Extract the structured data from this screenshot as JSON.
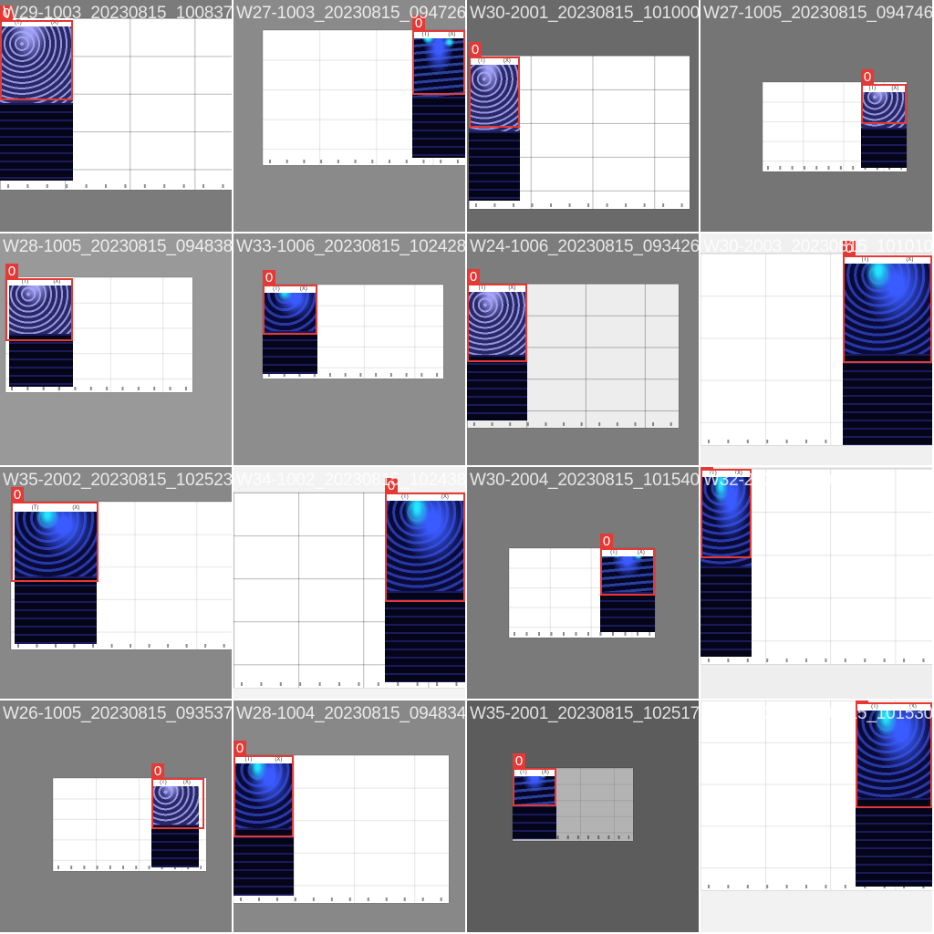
{
  "colors": {
    "box": "#e53935",
    "scan_dark": "#08081e",
    "scan_glow_blue": "#3a5bff",
    "scan_glow_cyan": "#22e6ff",
    "scan_lavender": "#8c8cd8"
  },
  "header_text": [
    "(T)",
    "(X)"
  ],
  "tiles": [
    {
      "filename": "W29-1003_20230815_100837.png",
      "label": "0",
      "bg": "#7b7b7b",
      "doc": "white",
      "style": "lavender"
    },
    {
      "filename": "W27-1003_20230815_094726.png",
      "label": "0",
      "bg": "#8a8a8a",
      "doc": "white",
      "style": "cyan"
    },
    {
      "filename": "W30-2001_20230815_101000.png",
      "label": "0",
      "bg": "#6a6a6a",
      "doc": "white",
      "style": "lavender"
    },
    {
      "filename": "W27-1005_20230815_094746.png",
      "label": "0",
      "bg": "#757575",
      "doc": "white",
      "style": "lavender"
    },
    {
      "filename": "W28-1005_20230815_094838.png",
      "label": "0",
      "bg": "#999999",
      "doc": "white",
      "style": "lavender"
    },
    {
      "filename": "W33-1006_20230815_102428.png",
      "label": "0",
      "bg": "#8d8d8d",
      "doc": "white",
      "style": "blue"
    },
    {
      "filename": "W24-1006_20230815_093426.png",
      "label": "0",
      "bg": "#7d7d7d",
      "doc": "grey",
      "style": "lavender"
    },
    {
      "filename": "W30-2003_20230815_101010.png",
      "label": "0",
      "bg": "#f0f0f0",
      "doc": "white",
      "style": "blue"
    },
    {
      "filename": "W35-2002_20230815_102523.png",
      "label": "0",
      "bg": "#888888",
      "doc": "white",
      "style": "blue"
    },
    {
      "filename": "W34-1002_20230815_102438.png",
      "label": "0",
      "bg": "#f3f3f3",
      "doc": "white",
      "style": "blue"
    },
    {
      "filename": "W30-2004_20230815_101540.png",
      "label": "0",
      "bg": "#7a7a7a",
      "doc": "white",
      "style": "cyan"
    },
    {
      "filename": "W32-2001_20230815_102241.png",
      "label": "0",
      "bg": "#eeeeee",
      "doc": "white",
      "style": "blue"
    },
    {
      "filename": "W26-1005_20230815_093537.png",
      "label": "0",
      "bg": "#7f7f7f",
      "doc": "white",
      "style": "lavender"
    },
    {
      "filename": "W28-1004_20230815_094834.png",
      "label": "0",
      "bg": "#888888",
      "doc": "white",
      "style": "blue"
    },
    {
      "filename": "W35-2001_20230815_102517.png",
      "label": "0",
      "bg": "#5c5c5c",
      "doc": "darkgrey",
      "style": "cyan"
    },
    {
      "filename": "W30-2005_20230815_101530.png",
      "label": "0",
      "bg": "#f2f2f2",
      "doc": "white",
      "style": "blue"
    }
  ]
}
